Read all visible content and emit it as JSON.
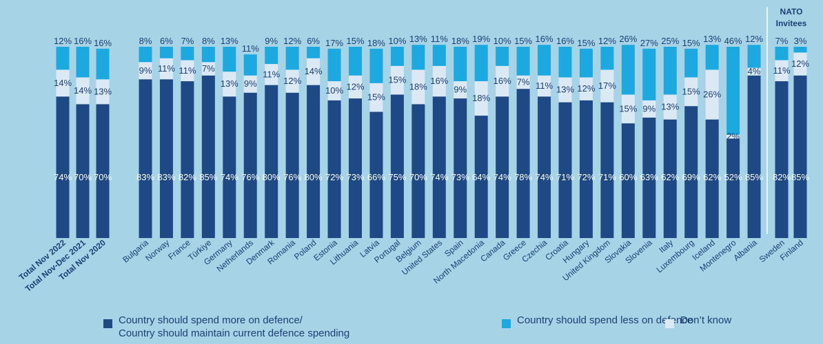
{
  "chart_data": {
    "type": "bar",
    "stacked": true,
    "colors": {
      "spend": "#1f4984",
      "less": "#1ba9e0",
      "dk": "#dbe9f4"
    },
    "group_title": [
      "NATO",
      "Invitees"
    ],
    "categories": [
      "Total Nov 2022",
      "Total Nov-Dec 2021",
      "Total Nov 2020",
      "Bulgaria",
      "Norway",
      "France",
      "Türkiye",
      "Germany",
      "Netherlands",
      "Denmark",
      "Romania",
      "Poland",
      "Estonia",
      "Lithuania",
      "Latvia",
      "Portugal",
      "Belgium",
      "United States",
      "Spain",
      "North Macedonia",
      "Canada",
      "Greece",
      "Czechia",
      "Croatia",
      "Hungary",
      "United Kingdom",
      "Slovakia",
      "Slovenia",
      "Italy",
      "Luxembourg",
      "Iceland",
      "Montenegro",
      "Albania",
      "Sweden",
      "Finland"
    ],
    "series": [
      {
        "name": "Country should spend more on defence/ Country should maintain current defence spending",
        "color": "#1f4984",
        "values": [
          74,
          70,
          70,
          83,
          83,
          82,
          85,
          74,
          76,
          80,
          76,
          80,
          72,
          73,
          66,
          75,
          70,
          74,
          73,
          64,
          74,
          78,
          74,
          71,
          72,
          71,
          60,
          63,
          62,
          69,
          62,
          52,
          85,
          82,
          85
        ]
      },
      {
        "name": "Don’t know",
        "color": "#dbe9f4",
        "values": [
          14,
          14,
          13,
          9,
          11,
          11,
          7,
          13,
          9,
          11,
          12,
          14,
          10,
          12,
          15,
          15,
          18,
          16,
          9,
          18,
          16,
          7,
          11,
          13,
          12,
          17,
          15,
          9,
          13,
          15,
          26,
          2,
          4,
          11,
          12
        ]
      },
      {
        "name": "Country should spend less on defence",
        "color": "#1ba9e0",
        "values": [
          12,
          16,
          16,
          8,
          6,
          7,
          8,
          13,
          11,
          9,
          12,
          6,
          17,
          15,
          18,
          10,
          13,
          11,
          18,
          19,
          10,
          15,
          16,
          16,
          15,
          12,
          26,
          27,
          25,
          15,
          13,
          46,
          12,
          7,
          3
        ]
      }
    ],
    "legend": {
      "spend_line1": "Country should spend more on defence/",
      "spend_line2": "Country should maintain current defence spending",
      "less": "Country should spend less on defence",
      "dk": "Don’t know"
    },
    "legend_placement": "bottom",
    "value_suffix": "%"
  }
}
